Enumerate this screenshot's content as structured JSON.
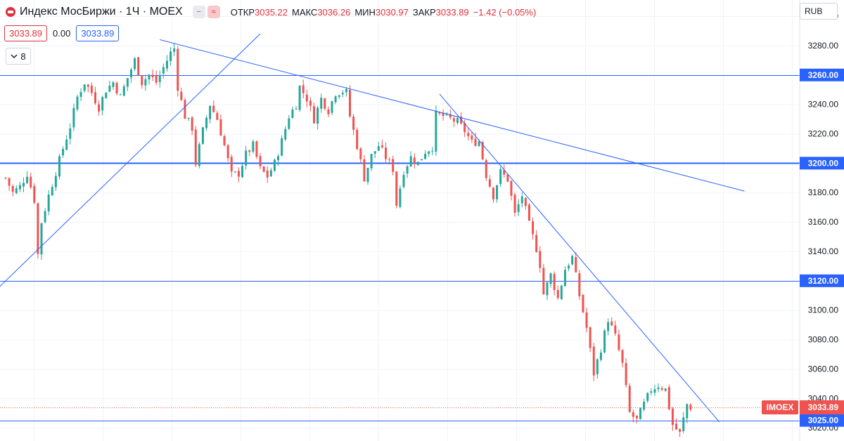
{
  "header": {
    "title": "Индекс МосБиржи · 1Ч · MOEX",
    "ohlc": [
      {
        "label": "ОТКР",
        "value": "3035.22"
      },
      {
        "label": "МАКС",
        "value": "3036.26"
      },
      {
        "label": "МИН",
        "value": "3030.97"
      },
      {
        "label": "ЗАКР",
        "value": "3033.89"
      }
    ],
    "change": "−1.42 (−0.05%)",
    "bid": "3033.89",
    "spread": "0.00",
    "ask": "3033.89",
    "indicators_count": "8",
    "currency": "RUB"
  },
  "colors": {
    "up": "#26a69a",
    "down": "#ef5350",
    "line": "#2962ff",
    "bg": "#ffffff"
  },
  "chart_data": {
    "type": "candlestick",
    "symbol": "IMOEX",
    "interval": "1Ч",
    "ylim": [
      3011,
      3311
    ],
    "y_ticks": [
      3300,
      3280,
      3260,
      3240,
      3220,
      3200,
      3180,
      3160,
      3140,
      3120,
      3100,
      3080,
      3060,
      3040,
      3020
    ],
    "bar_count": 203,
    "grid": true,
    "last_price": 3033.89,
    "last_price_label": "3033.89",
    "symbol_label": "IMOEX",
    "horizontal_levels": [
      {
        "price": 3260,
        "label": "3260.00",
        "weight": "thin"
      },
      {
        "price": 3200,
        "label": "3200.00",
        "weight": "thick"
      },
      {
        "price": 3120,
        "label": "3120.00",
        "weight": "thin"
      },
      {
        "price": 3025,
        "label": "3025.00",
        "weight": "thin"
      }
    ],
    "trendlines": [
      {
        "from": {
          "bar": -8,
          "price": 3101
        },
        "to": {
          "bar": 71,
          "price": 3288
        }
      },
      {
        "from": {
          "bar": 43,
          "price": 3284
        },
        "to": {
          "bar": 206,
          "price": 3181
        }
      },
      {
        "from": {
          "bar": 121,
          "price": 3247
        },
        "to": {
          "bar": 199,
          "price": 3024
        }
      }
    ],
    "waypoints": [
      [
        0,
        3190
      ],
      [
        2,
        3180
      ],
      [
        4,
        3184
      ],
      [
        6,
        3193
      ],
      [
        8,
        3175
      ],
      [
        9,
        3138
      ],
      [
        10,
        3160
      ],
      [
        12,
        3178
      ],
      [
        14,
        3194
      ],
      [
        16,
        3210
      ],
      [
        18,
        3225
      ],
      [
        20,
        3245
      ],
      [
        22,
        3255
      ],
      [
        24,
        3248
      ],
      [
        26,
        3238
      ],
      [
        28,
        3250
      ],
      [
        30,
        3255
      ],
      [
        32,
        3245
      ],
      [
        34,
        3258
      ],
      [
        36,
        3270
      ],
      [
        38,
        3255
      ],
      [
        40,
        3260
      ],
      [
        42,
        3255
      ],
      [
        44,
        3265
      ],
      [
        46,
        3275
      ],
      [
        47,
        3278
      ],
      [
        48,
        3252
      ],
      [
        50,
        3232
      ],
      [
        52,
        3224
      ],
      [
        53,
        3200
      ],
      [
        55,
        3222
      ],
      [
        57,
        3240
      ],
      [
        59,
        3230
      ],
      [
        61,
        3212
      ],
      [
        63,
        3192
      ],
      [
        65,
        3193
      ],
      [
        67,
        3206
      ],
      [
        69,
        3212
      ],
      [
        71,
        3196
      ],
      [
        73,
        3191
      ],
      [
        75,
        3200
      ],
      [
        77,
        3215
      ],
      [
        79,
        3232
      ],
      [
        81,
        3240
      ],
      [
        82,
        3252
      ],
      [
        84,
        3244
      ],
      [
        86,
        3230
      ],
      [
        88,
        3244
      ],
      [
        90,
        3236
      ],
      [
        92,
        3248
      ],
      [
        94,
        3249
      ],
      [
        95,
        3248
      ],
      [
        96,
        3232
      ],
      [
        98,
        3212
      ],
      [
        100,
        3190
      ],
      [
        102,
        3205
      ],
      [
        104,
        3212
      ],
      [
        106,
        3204
      ],
      [
        108,
        3196
      ],
      [
        109,
        3172
      ],
      [
        111,
        3195
      ],
      [
        113,
        3204
      ],
      [
        115,
        3200
      ],
      [
        117,
        3208
      ],
      [
        119,
        3211
      ],
      [
        120,
        3233
      ],
      [
        122,
        3232
      ],
      [
        124,
        3230
      ],
      [
        126,
        3228
      ],
      [
        128,
        3222
      ],
      [
        130,
        3214
      ],
      [
        132,
        3215
      ],
      [
        134,
        3192
      ],
      [
        136,
        3178
      ],
      [
        138,
        3194
      ],
      [
        140,
        3189
      ],
      [
        142,
        3165
      ],
      [
        144,
        3178
      ],
      [
        146,
        3158
      ],
      [
        148,
        3142
      ],
      [
        149,
        3131
      ],
      [
        150,
        3111
      ],
      [
        152,
        3124
      ],
      [
        154,
        3108
      ],
      [
        156,
        3128
      ],
      [
        158,
        3136
      ],
      [
        160,
        3110
      ],
      [
        162,
        3088
      ],
      [
        164,
        3057
      ],
      [
        166,
        3074
      ],
      [
        168,
        3094
      ],
      [
        170,
        3082
      ],
      [
        172,
        3063
      ],
      [
        174,
        3030
      ],
      [
        176,
        3025
      ],
      [
        178,
        3036
      ],
      [
        180,
        3046
      ],
      [
        182,
        3049
      ],
      [
        184,
        3046
      ],
      [
        186,
        3022
      ],
      [
        188,
        3016
      ],
      [
        190,
        3036
      ],
      [
        191,
        3034
      ]
    ]
  }
}
